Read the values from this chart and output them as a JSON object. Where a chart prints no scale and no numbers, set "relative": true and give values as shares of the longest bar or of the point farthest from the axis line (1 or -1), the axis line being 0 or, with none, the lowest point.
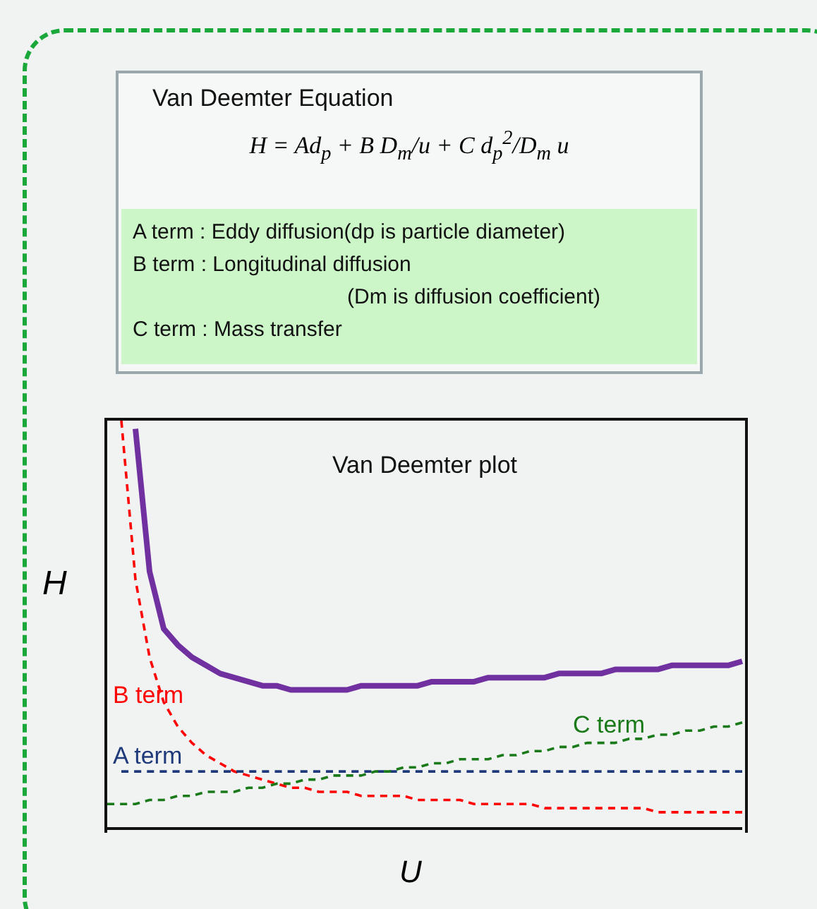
{
  "chart_data": [
    {
      "type": "other",
      "title": "Van Deemter Equation",
      "subtitle": "H = Ad$_{p}$ + B D$_{m}$/u + C d$_{p}$$^{2}$/D$_{m}$ u",
      "annotations": [
        "A term : Eddy diffusion(dp is particle diameter)",
        "B term : Longitudinal diffusion",
        "(Dm is diffusion coefficient)",
        "C term : Mass transfer"
      ]
    },
    {
      "type": "line",
      "title": "Van Deemter plot",
      "xlabel": "U",
      "ylabel": "H",
      "relative": true,
      "categories": [
        null,
        null,
        null,
        null,
        null,
        null,
        null,
        null,
        null,
        null,
        null,
        null,
        null,
        null,
        null,
        null,
        null,
        null,
        null,
        null,
        null,
        null,
        null,
        null,
        null,
        null,
        null,
        null,
        null,
        null,
        null,
        null,
        null,
        null,
        null,
        null,
        null,
        null,
        null,
        null,
        null,
        null,
        null,
        null,
        null,
        null
      ],
      "series": [
        {
          "color": "#7030a0",
          "line_style": "solid",
          "values": [
            null,
            null,
            0.98,
            0.63,
            0.49,
            0.45,
            0.42,
            0.4,
            0.38,
            0.37,
            0.36,
            0.35,
            0.35,
            0.34,
            0.34,
            0.34,
            0.34,
            0.34,
            0.35,
            0.35,
            0.35,
            0.35,
            0.35,
            0.36,
            0.36,
            0.36,
            0.36,
            0.37,
            0.37,
            0.37,
            0.37,
            0.37,
            0.38,
            0.38,
            0.38,
            0.38,
            0.39,
            0.39,
            0.39,
            0.39,
            0.4,
            0.4,
            0.4,
            0.4,
            0.4,
            0.41
          ]
        },
        {
          "name": "B term",
          "color": "#ff0000",
          "line_style": "dashed",
          "values": [
            null,
            1.0,
            0.61,
            0.42,
            0.31,
            0.25,
            0.21,
            0.18,
            0.16,
            0.14,
            0.13,
            0.12,
            0.11,
            0.1,
            0.1,
            0.09,
            0.09,
            0.09,
            0.08,
            0.08,
            0.08,
            0.08,
            0.07,
            0.07,
            0.07,
            0.07,
            0.06,
            0.06,
            0.06,
            0.06,
            0.06,
            0.05,
            0.05,
            0.05,
            0.05,
            0.05,
            0.05,
            0.05,
            0.05,
            0.04,
            0.04,
            0.04,
            0.04,
            0.04,
            0.04,
            0.04
          ]
        },
        {
          "name": "A term",
          "color": "#1f3a7a",
          "line_style": "dashed",
          "values": [
            null,
            0.14,
            0.14,
            0.14,
            0.14,
            0.14,
            0.14,
            0.14,
            0.14,
            0.14,
            0.14,
            0.14,
            0.14,
            0.14,
            0.14,
            0.14,
            0.14,
            0.14,
            0.14,
            0.14,
            0.14,
            0.14,
            0.14,
            0.14,
            0.14,
            0.14,
            0.14,
            0.14,
            0.14,
            0.14,
            0.14,
            0.14,
            0.14,
            0.14,
            0.14,
            0.14,
            0.14,
            0.14,
            0.14,
            0.14,
            0.14,
            0.14,
            0.14,
            0.14,
            0.14,
            0.14
          ]
        },
        {
          "name": "C term",
          "color": "#1a7a1a",
          "line_style": "dashed",
          "values": [
            0.06,
            0.06,
            0.06,
            0.07,
            0.07,
            0.08,
            0.08,
            0.09,
            0.09,
            0.09,
            0.1,
            0.1,
            0.11,
            0.11,
            0.12,
            0.12,
            0.13,
            0.13,
            0.13,
            0.14,
            0.14,
            0.15,
            0.15,
            0.16,
            0.16,
            0.17,
            0.17,
            0.17,
            0.18,
            0.18,
            0.19,
            0.19,
            0.2,
            0.2,
            0.21,
            0.21,
            0.21,
            0.22,
            0.22,
            0.23,
            0.23,
            0.24,
            0.24,
            0.25,
            0.25,
            0.26
          ]
        }
      ]
    }
  ]
}
